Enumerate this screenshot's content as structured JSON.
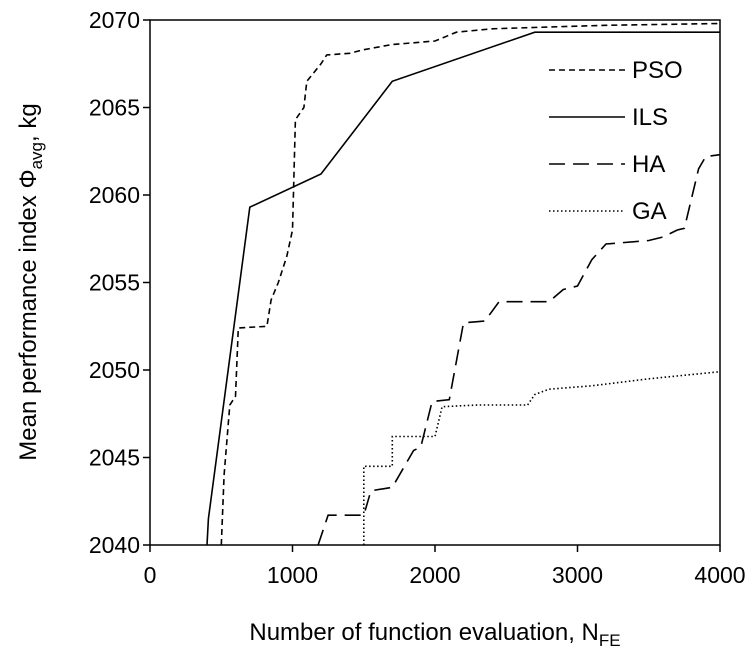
{
  "chart_data": {
    "type": "line",
    "xlabel": "Number of function evaluation, N",
    "xlabel_sub": "FE",
    "ylabel": "Mean performance index Φ",
    "ylabel_sub": "avg",
    "ylabel_suffix": ", kg",
    "xlim": [
      0,
      4000
    ],
    "ylim": [
      2040,
      2070
    ],
    "xticks": [
      0,
      1000,
      2000,
      3000,
      4000
    ],
    "yticks": [
      2040,
      2045,
      2050,
      2055,
      2060,
      2065,
      2070
    ],
    "grid": false,
    "legend_position": "top-right",
    "series": [
      {
        "name": "PSO",
        "dash": "6,4",
        "points": [
          [
            500,
            2040
          ],
          [
            520,
            2044
          ],
          [
            560,
            2048
          ],
          [
            600,
            2048.5
          ],
          [
            620,
            2052.4
          ],
          [
            820,
            2052.5
          ],
          [
            850,
            2054
          ],
          [
            900,
            2055
          ],
          [
            960,
            2056.5
          ],
          [
            1000,
            2058
          ],
          [
            1020,
            2064.3
          ],
          [
            1080,
            2065
          ],
          [
            1100,
            2066.5
          ],
          [
            1200,
            2067.5
          ],
          [
            1240,
            2068
          ],
          [
            1400,
            2068.1
          ],
          [
            1500,
            2068.3
          ],
          [
            1700,
            2068.6
          ],
          [
            1850,
            2068.7
          ],
          [
            2000,
            2068.8
          ],
          [
            2150,
            2069.3
          ],
          [
            2400,
            2069.5
          ],
          [
            2800,
            2069.6
          ],
          [
            3200,
            2069.7
          ],
          [
            4000,
            2069.8
          ]
        ]
      },
      {
        "name": "ILS",
        "dash": "",
        "points": [
          [
            400,
            2040
          ],
          [
            410,
            2041.5
          ],
          [
            700,
            2059.3
          ],
          [
            1200,
            2061.2
          ],
          [
            1700,
            2066.5
          ],
          [
            2700,
            2069.3
          ],
          [
            4000,
            2069.3
          ]
        ]
      },
      {
        "name": "HA",
        "dash": "16,8",
        "points": [
          [
            1180,
            2040
          ],
          [
            1250,
            2041.7
          ],
          [
            1500,
            2041.7
          ],
          [
            1550,
            2043.1
          ],
          [
            1700,
            2043.3
          ],
          [
            1850,
            2045.4
          ],
          [
            1900,
            2045.6
          ],
          [
            1980,
            2048.2
          ],
          [
            2100,
            2048.3
          ],
          [
            2200,
            2052.7
          ],
          [
            2350,
            2052.8
          ],
          [
            2450,
            2053.9
          ],
          [
            2800,
            2053.9
          ],
          [
            2900,
            2054.6
          ],
          [
            3000,
            2054.8
          ],
          [
            3100,
            2056.3
          ],
          [
            3200,
            2057.2
          ],
          [
            3500,
            2057.4
          ],
          [
            3600,
            2057.6
          ],
          [
            3700,
            2058
          ],
          [
            3750,
            2058.1
          ],
          [
            3850,
            2061.5
          ],
          [
            3900,
            2062.2
          ],
          [
            4000,
            2062.3
          ]
        ]
      },
      {
        "name": "GA",
        "dash": "1.5,2.5",
        "points": [
          [
            1500,
            2040
          ],
          [
            1500,
            2044.5
          ],
          [
            1700,
            2044.5
          ],
          [
            1700,
            2046.2
          ],
          [
            2000,
            2046.2
          ],
          [
            2050,
            2047.9
          ],
          [
            2300,
            2048
          ],
          [
            2650,
            2048
          ],
          [
            2700,
            2048.6
          ],
          [
            2800,
            2048.9
          ],
          [
            3100,
            2049.1
          ],
          [
            3500,
            2049.5
          ],
          [
            4000,
            2049.9
          ]
        ]
      }
    ]
  }
}
